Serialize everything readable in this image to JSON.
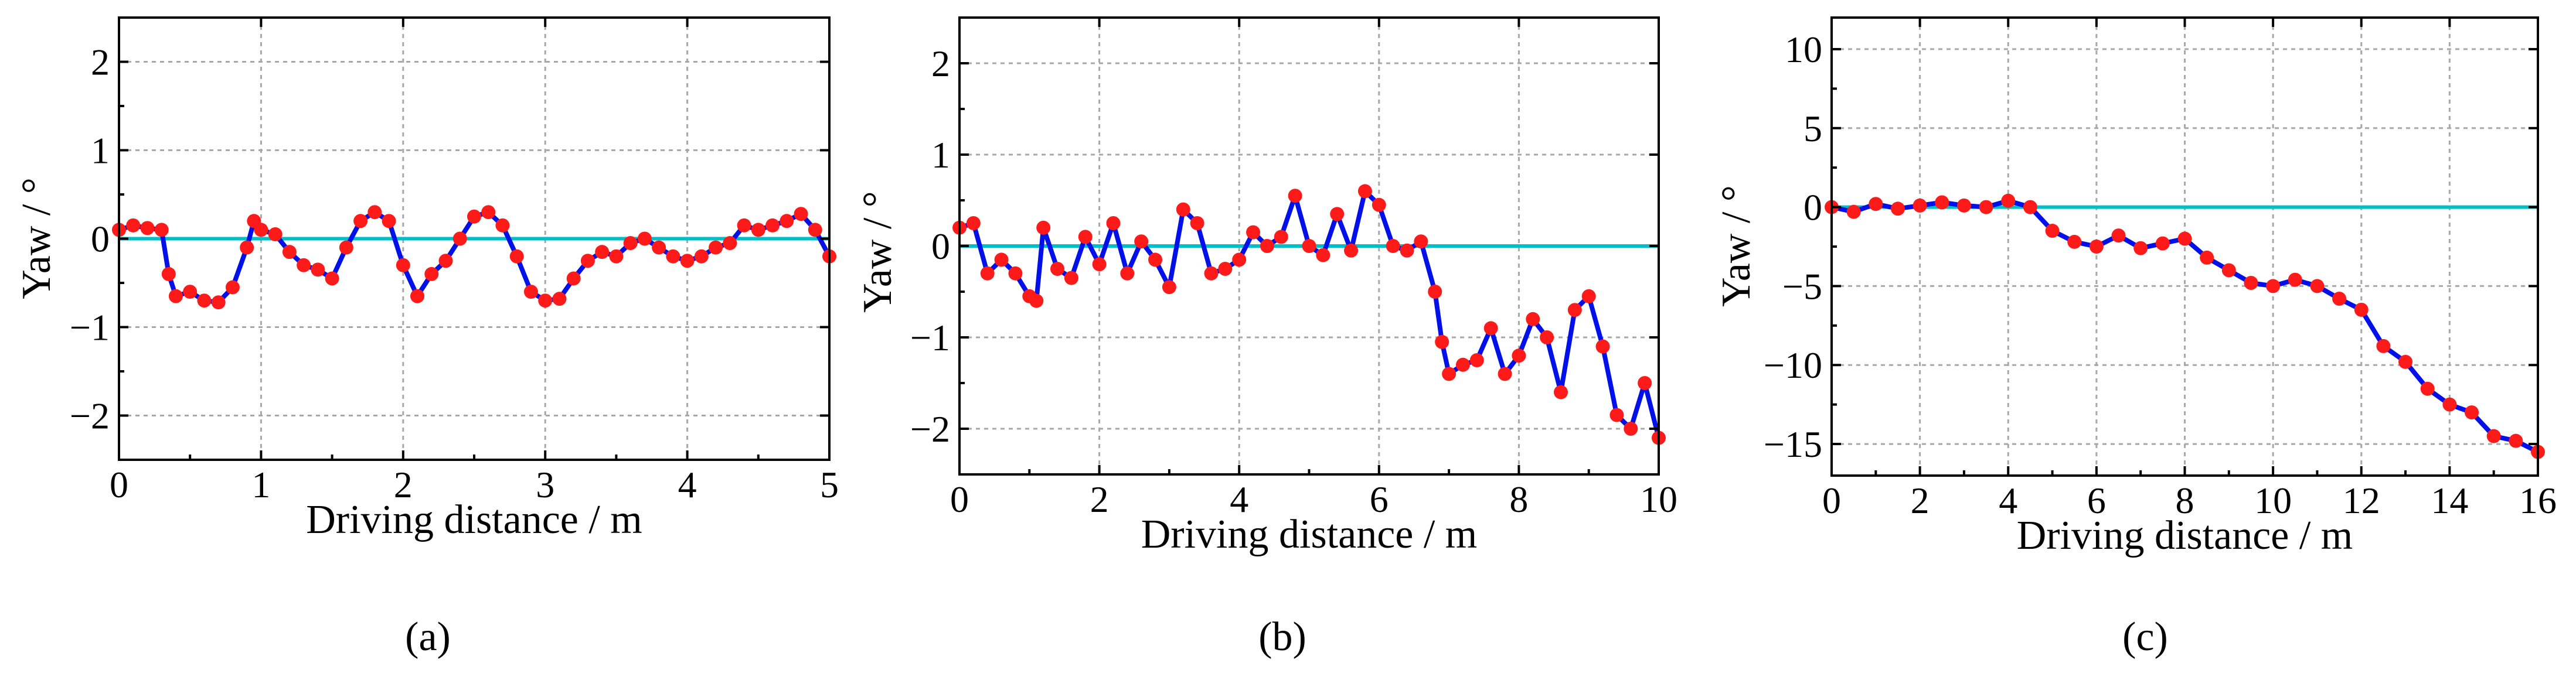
{
  "chart_data": [
    {
      "type": "line",
      "caption": "(a)",
      "xlabel": "Driving distance / m",
      "ylabel": "Yaw / °",
      "xlim": [
        0,
        5
      ],
      "ylim": [
        -2.5,
        2.5
      ],
      "xticks": [
        0,
        1,
        2,
        3,
        4,
        5
      ],
      "yticks": [
        -2,
        -1,
        0,
        1,
        2
      ],
      "grid": true,
      "reference_y": 0,
      "series": [
        {
          "name": "yaw",
          "x": [
            0,
            0.1,
            0.2,
            0.3,
            0.35,
            0.4,
            0.5,
            0.6,
            0.7,
            0.8,
            0.9,
            0.95,
            1.0,
            1.1,
            1.2,
            1.3,
            1.4,
            1.5,
            1.6,
            1.7,
            1.8,
            1.9,
            2.0,
            2.1,
            2.2,
            2.3,
            2.4,
            2.5,
            2.6,
            2.7,
            2.8,
            2.9,
            3.0,
            3.1,
            3.2,
            3.3,
            3.4,
            3.5,
            3.6,
            3.7,
            3.8,
            3.9,
            4.0,
            4.1,
            4.2,
            4.3,
            4.4,
            4.5,
            4.6,
            4.7,
            4.8,
            4.9,
            5.0
          ],
          "y": [
            0.1,
            0.15,
            0.12,
            0.1,
            -0.4,
            -0.65,
            -0.6,
            -0.7,
            -0.72,
            -0.55,
            -0.1,
            0.2,
            0.1,
            0.05,
            -0.15,
            -0.3,
            -0.35,
            -0.45,
            -0.1,
            0.2,
            0.3,
            0.2,
            -0.3,
            -0.65,
            -0.4,
            -0.25,
            0.0,
            0.25,
            0.3,
            0.15,
            -0.2,
            -0.6,
            -0.7,
            -0.68,
            -0.45,
            -0.25,
            -0.15,
            -0.2,
            -0.05,
            0.0,
            -0.1,
            -0.2,
            -0.25,
            -0.2,
            -0.1,
            -0.05,
            0.15,
            0.1,
            0.15,
            0.2,
            0.28,
            0.1,
            -0.2
          ]
        }
      ]
    },
    {
      "type": "line",
      "caption": "(b)",
      "xlabel": "Driving distance / m",
      "ylabel": "Yaw / °",
      "xlim": [
        0,
        10
      ],
      "ylim": [
        -2.5,
        2.5
      ],
      "xticks": [
        0,
        2,
        4,
        6,
        8,
        10
      ],
      "yticks": [
        -2,
        -1,
        0,
        1,
        2
      ],
      "grid": true,
      "reference_y": 0,
      "series": [
        {
          "name": "yaw",
          "x": [
            0,
            0.2,
            0.4,
            0.6,
            0.8,
            1.0,
            1.1,
            1.2,
            1.4,
            1.6,
            1.8,
            2.0,
            2.2,
            2.4,
            2.6,
            2.8,
            3.0,
            3.2,
            3.4,
            3.6,
            3.8,
            4.0,
            4.2,
            4.4,
            4.6,
            4.8,
            5.0,
            5.2,
            5.4,
            5.6,
            5.8,
            6.0,
            6.2,
            6.4,
            6.6,
            6.8,
            6.9,
            7.0,
            7.2,
            7.4,
            7.6,
            7.8,
            8.0,
            8.2,
            8.4,
            8.6,
            8.8,
            9.0,
            9.2,
            9.4,
            9.6,
            9.8,
            10.0
          ],
          "y": [
            0.2,
            0.25,
            -0.3,
            -0.15,
            -0.3,
            -0.55,
            -0.6,
            0.2,
            -0.25,
            -0.35,
            0.1,
            -0.2,
            0.25,
            -0.3,
            0.05,
            -0.15,
            -0.45,
            0.4,
            0.25,
            -0.3,
            -0.25,
            -0.15,
            0.15,
            0.0,
            0.1,
            0.55,
            0.0,
            -0.1,
            0.35,
            -0.05,
            0.6,
            0.45,
            0.0,
            -0.05,
            0.05,
            -0.5,
            -1.05,
            -1.4,
            -1.3,
            -1.25,
            -0.9,
            -1.4,
            -1.2,
            -0.8,
            -1.0,
            -1.6,
            -0.7,
            -0.55,
            -1.1,
            -1.85,
            -2.0,
            -1.5,
            -2.1
          ]
        }
      ]
    },
    {
      "type": "line",
      "caption": "(c)",
      "xlabel": "Driving distance / m",
      "ylabel": "Yaw / °",
      "xlim": [
        0,
        16
      ],
      "ylim": [
        -17,
        12
      ],
      "xticks": [
        0,
        2,
        4,
        6,
        8,
        10,
        12,
        14,
        16
      ],
      "yticks": [
        -15,
        -10,
        -5,
        0,
        5,
        10
      ],
      "grid": true,
      "reference_y": 0,
      "series": [
        {
          "name": "yaw",
          "x": [
            0,
            0.5,
            1,
            1.5,
            2,
            2.5,
            3,
            3.5,
            4,
            4.5,
            5,
            5.5,
            6,
            6.5,
            7,
            7.5,
            8,
            8.5,
            9,
            9.5,
            10,
            10.5,
            11,
            11.5,
            12,
            12.5,
            13,
            13.5,
            14,
            14.5,
            15,
            15.5,
            16
          ],
          "y": [
            0,
            -0.3,
            0.2,
            -0.1,
            0.1,
            0.3,
            0.1,
            0.0,
            0.4,
            0.0,
            -1.5,
            -2.2,
            -2.5,
            -1.8,
            -2.6,
            -2.3,
            -2.0,
            -3.2,
            -4.0,
            -4.8,
            -5.0,
            -4.6,
            -5.0,
            -5.8,
            -6.5,
            -8.8,
            -9.8,
            -11.5,
            -12.5,
            -13.0,
            -14.5,
            -14.8,
            -15.5
          ]
        }
      ]
    }
  ]
}
